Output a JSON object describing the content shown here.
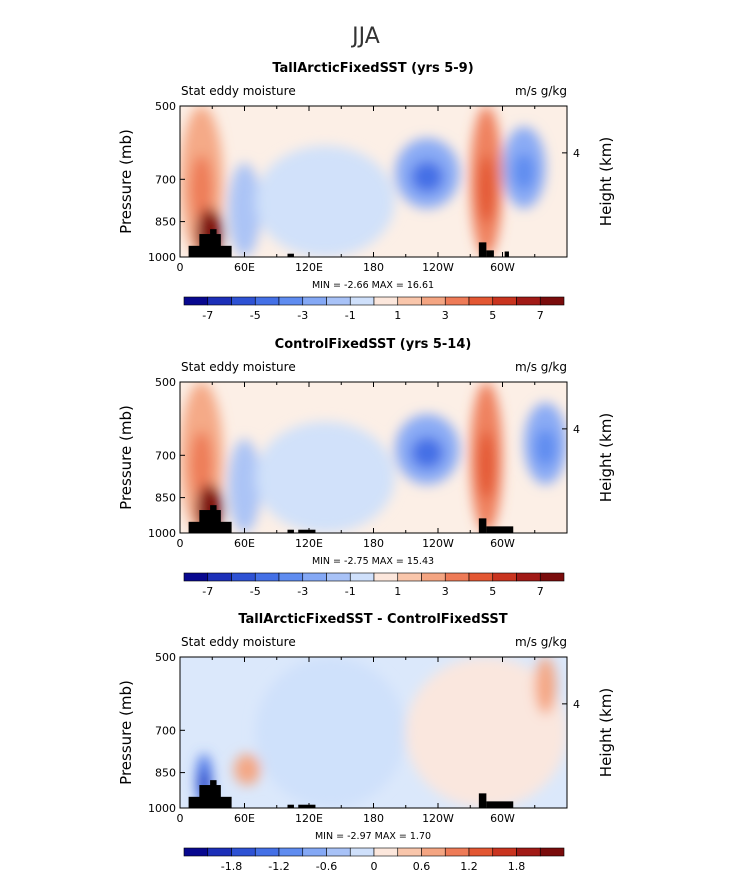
{
  "figure": {
    "season": "JJA"
  },
  "colors": {
    "palette": [
      "#08088f",
      "#1c2fb8",
      "#2e52d4",
      "#4470e6",
      "#5f8cf0",
      "#84a8f5",
      "#a8c2f7",
      "#cfe0fb",
      "#fce7dc",
      "#f9c6ab",
      "#f4a582",
      "#ee7b57",
      "#e35733",
      "#c9341f",
      "#a11a16",
      "#7a0c0c"
    ],
    "terrain": "#000000"
  },
  "chart_data": [
    {
      "type": "heatmap",
      "title": "TallArcticFixedSST (yrs 5-9)",
      "left_label": "Stat eddy moisture",
      "right_label": "m/s g/kg",
      "ylabel": "Pressure (mb)",
      "ylabel_right": "Height (km)",
      "yticks": [
        "500",
        "700",
        "850",
        "1000"
      ],
      "yticks_right": [
        "4"
      ],
      "xticks": [
        "0",
        "60E",
        "120E",
        "180",
        "120W",
        "60W"
      ],
      "ylim": [
        1000,
        500
      ],
      "xlim": [
        0,
        360
      ],
      "stats_text": "MIN =   -2.66   MAX =   16.61",
      "min": -2.66,
      "max": 16.61,
      "colorbar_labels": [
        "-7",
        "-5",
        "-3",
        "-1",
        "1",
        "3",
        "5",
        "7"
      ],
      "colorbar_levels": [
        -8,
        8
      ],
      "features": [
        {
          "name": "warm-band-0-30E",
          "lon": [
            0,
            40
          ],
          "p": [
            500,
            1000
          ],
          "value": 2.5
        },
        {
          "name": "strong-max-25E",
          "lon": [
            15,
            40
          ],
          "p": [
            800,
            1000
          ],
          "value": 8
        },
        {
          "name": "cool-60E",
          "lon": [
            45,
            75
          ],
          "p": [
            650,
            1000
          ],
          "value": -1.5
        },
        {
          "name": "cool-mid-pacific",
          "lon": [
            70,
            200
          ],
          "p": [
            600,
            1000
          ],
          "value": -0.8
        },
        {
          "name": "min-150W",
          "lon": [
            200,
            260
          ],
          "p": [
            580,
            800
          ],
          "value": -3
        },
        {
          "name": "warm-band-70W",
          "lon": [
            270,
            300
          ],
          "p": [
            500,
            1000
          ],
          "value": 3
        },
        {
          "name": "cool-30W",
          "lon": [
            300,
            340
          ],
          "p": [
            550,
            800
          ],
          "value": -2.5
        }
      ],
      "terrain": [
        {
          "lon": [
            8,
            48
          ],
          "p": [
            950,
            1000
          ]
        },
        {
          "lon": [
            18,
            38
          ],
          "p": [
            900,
            1000
          ]
        },
        {
          "lon": [
            28,
            34
          ],
          "p": [
            880,
            1000
          ]
        },
        {
          "lon": [
            100,
            106
          ],
          "p": [
            985,
            1000
          ]
        },
        {
          "lon": [
            278,
            285
          ],
          "p": [
            935,
            1000
          ]
        },
        {
          "lon": [
            285,
            292
          ],
          "p": [
            970,
            1000
          ]
        },
        {
          "lon": [
            302,
            306
          ],
          "p": [
            975,
            1000
          ]
        }
      ]
    },
    {
      "type": "heatmap",
      "title": "ControlFixedSST (yrs 5-14)",
      "left_label": "Stat eddy moisture",
      "right_label": "m/s g/kg",
      "ylabel": "Pressure (mb)",
      "ylabel_right": "Height (km)",
      "yticks": [
        "500",
        "700",
        "850",
        "1000"
      ],
      "yticks_right": [
        "4"
      ],
      "xticks": [
        "0",
        "60E",
        "120E",
        "180",
        "120W",
        "60W"
      ],
      "ylim": [
        1000,
        500
      ],
      "xlim": [
        0,
        360
      ],
      "stats_text": "MIN =   -2.75   MAX =   15.43",
      "min": -2.75,
      "max": 15.43,
      "colorbar_labels": [
        "-7",
        "-5",
        "-3",
        "-1",
        "1",
        "3",
        "5",
        "7"
      ],
      "colorbar_levels": [
        -8,
        8
      ],
      "features": [
        {
          "name": "warm-band-0-30E",
          "lon": [
            0,
            40
          ],
          "p": [
            500,
            1000
          ],
          "value": 2.5
        },
        {
          "name": "strong-max-25E",
          "lon": [
            15,
            40
          ],
          "p": [
            800,
            1000
          ],
          "value": 8
        },
        {
          "name": "cool-60E",
          "lon": [
            45,
            75
          ],
          "p": [
            650,
            1000
          ],
          "value": -1.5
        },
        {
          "name": "cool-mid-pacific",
          "lon": [
            70,
            200
          ],
          "p": [
            600,
            1000
          ],
          "value": -0.8
        },
        {
          "name": "min-150W",
          "lon": [
            200,
            260
          ],
          "p": [
            580,
            800
          ],
          "value": -3
        },
        {
          "name": "warm-band-70W",
          "lon": [
            270,
            300
          ],
          "p": [
            500,
            1000
          ],
          "value": 3
        },
        {
          "name": "cool-30W",
          "lon": [
            320,
            360
          ],
          "p": [
            550,
            800
          ],
          "value": -2.5
        }
      ],
      "terrain": [
        {
          "lon": [
            8,
            48
          ],
          "p": [
            950,
            1000
          ]
        },
        {
          "lon": [
            18,
            38
          ],
          "p": [
            900,
            1000
          ]
        },
        {
          "lon": [
            28,
            34
          ],
          "p": [
            880,
            1000
          ]
        },
        {
          "lon": [
            100,
            106
          ],
          "p": [
            985,
            1000
          ]
        },
        {
          "lon": [
            110,
            126
          ],
          "p": [
            985,
            1000
          ]
        },
        {
          "lon": [
            278,
            285
          ],
          "p": [
            935,
            1000
          ]
        },
        {
          "lon": [
            285,
            310
          ],
          "p": [
            970,
            1000
          ]
        }
      ]
    },
    {
      "type": "heatmap",
      "title": "TallArcticFixedSST - ControlFixedSST",
      "left_label": "Stat eddy moisture",
      "right_label": "m/s g/kg",
      "ylabel": "Pressure (mb)",
      "ylabel_right": "Height (km)",
      "yticks": [
        "500",
        "700",
        "850",
        "1000"
      ],
      "yticks_right": [
        "4"
      ],
      "xticks": [
        "0",
        "60E",
        "120E",
        "180",
        "120W",
        "60W"
      ],
      "ylim": [
        1000,
        500
      ],
      "xlim": [
        0,
        360
      ],
      "stats_text": "MIN =   -2.97   MAX =   1.70",
      "min": -2.97,
      "max": 1.7,
      "colorbar_labels": [
        "-1.8",
        "-1.2",
        "-0.6",
        "0",
        "0.6",
        "1.2",
        "1.8"
      ],
      "colorbar_levels": [
        -2.4,
        2.4
      ],
      "features": [
        {
          "name": "neg-25E-low",
          "lon": [
            15,
            30
          ],
          "p": [
            780,
            1000
          ],
          "value": -1.5
        },
        {
          "name": "pos-60E",
          "lon": [
            50,
            75
          ],
          "p": [
            780,
            900
          ],
          "value": 0.6
        },
        {
          "name": "neg-mid-pacific",
          "lon": [
            70,
            210
          ],
          "p": [
            500,
            1000
          ],
          "value": -0.2
        },
        {
          "name": "pos-east",
          "lon": [
            210,
            360
          ],
          "p": [
            500,
            1000
          ],
          "value": 0.2
        },
        {
          "name": "pos-30W-upper",
          "lon": [
            330,
            350
          ],
          "p": [
            500,
            650
          ],
          "value": 0.6
        }
      ],
      "terrain": [
        {
          "lon": [
            8,
            48
          ],
          "p": [
            950,
            1000
          ]
        },
        {
          "lon": [
            18,
            38
          ],
          "p": [
            900,
            1000
          ]
        },
        {
          "lon": [
            28,
            34
          ],
          "p": [
            880,
            1000
          ]
        },
        {
          "lon": [
            100,
            106
          ],
          "p": [
            985,
            1000
          ]
        },
        {
          "lon": [
            110,
            126
          ],
          "p": [
            985,
            1000
          ]
        },
        {
          "lon": [
            278,
            285
          ],
          "p": [
            935,
            1000
          ]
        },
        {
          "lon": [
            285,
            310
          ],
          "p": [
            970,
            1000
          ]
        }
      ]
    }
  ]
}
